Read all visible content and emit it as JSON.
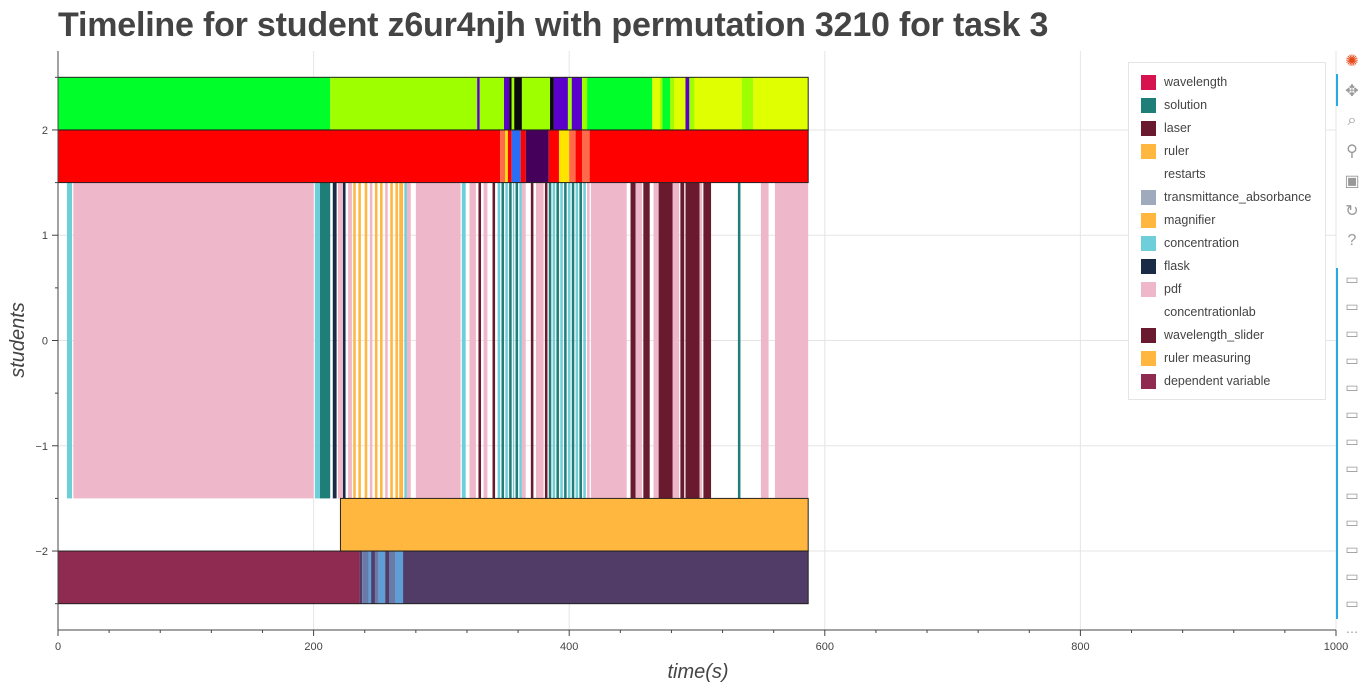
{
  "colors": {
    "wavelength": "#d6134f",
    "solution": "#1f7f78",
    "laser": "#6a1a2e",
    "ruler": "#ffb740",
    "restarts": "#ffffff",
    "transmittance_absorbance": "#9fabbd",
    "magnifier": "#ffb740",
    "concentration": "#6ecfdb",
    "flask": "#1a2b45",
    "pdf": "#efb8ca",
    "concentrationlab": "#ffffff",
    "wavelength_slider": "#6a1a2e",
    "ruler measuring": "#ffb740",
    "dependent variable": "#8f2a50",
    "top_green": "#00ff2a",
    "top_lime": "#9dff00",
    "top_yellow": "#e0ff00",
    "top_purple": "#5a00c8",
    "top_black": "#0a0a0a",
    "red": "#ff0000",
    "red_blue": "#2a6ef5",
    "red_dark": "#44005a",
    "red_yellow": "#ffe400",
    "red_salmon": "#ff6a4a",
    "bottom_maroon": "#8f2a50",
    "bottom_slate": "#503c66",
    "bottom_blue": "#5d9ed6",
    "bottom_grayblue": "#6a7aa8"
  },
  "chart_data": {
    "type": "bar",
    "title": "Timeline for student z6ur4njh with permutation 3210 for task 3",
    "xlabel": "time(s)",
    "ylabel": "students",
    "xlim": [
      0,
      1000
    ],
    "ylim": [
      -2.75,
      2.75
    ],
    "x_ticks": [
      0,
      200,
      400,
      600,
      800,
      1000
    ],
    "y_ticks": [
      -2,
      -1,
      0,
      1,
      2
    ],
    "x_tick_labels": [
      "0",
      "200",
      "400",
      "600",
      "800",
      "1000"
    ],
    "y_tick_labels": [
      "−2",
      "−1",
      "0",
      "1",
      "2"
    ],
    "grid": true,
    "legend_position": "top-right",
    "legend": [
      {
        "label": "wavelength",
        "color_key": "wavelength"
      },
      {
        "label": "solution",
        "color_key": "solution"
      },
      {
        "label": "laser",
        "color_key": "laser"
      },
      {
        "label": "ruler",
        "color_key": "ruler"
      },
      {
        "label": "restarts",
        "color_key": "restarts"
      },
      {
        "label": "transmittance_absorbance",
        "color_key": "transmittance_absorbance"
      },
      {
        "label": "magnifier",
        "color_key": "magnifier"
      },
      {
        "label": "concentration",
        "color_key": "concentration"
      },
      {
        "label": "flask",
        "color_key": "flask"
      },
      {
        "label": "pdf",
        "color_key": "pdf"
      },
      {
        "label": "concentrationlab",
        "color_key": "concentrationlab"
      },
      {
        "label": "wavelength_slider",
        "color_key": "wavelength_slider"
      },
      {
        "label": "ruler measuring",
        "color_key": "ruler measuring"
      },
      {
        "label": "dependent variable",
        "color_key": "dependent variable"
      }
    ],
    "rows": [
      {
        "name": "top",
        "y_range": [
          2.0,
          2.5
        ],
        "segments": [
          {
            "start": 0,
            "end": 213,
            "color_key": "top_green"
          },
          {
            "start": 213,
            "end": 328,
            "color_key": "top_lime"
          },
          {
            "start": 328,
            "end": 330,
            "color_key": "top_purple"
          },
          {
            "start": 330,
            "end": 349,
            "color_key": "top_lime"
          },
          {
            "start": 349,
            "end": 353,
            "color_key": "top_purple"
          },
          {
            "start": 353,
            "end": 355,
            "color_key": "top_black"
          },
          {
            "start": 355,
            "end": 357,
            "color_key": "top_lime"
          },
          {
            "start": 357,
            "end": 363,
            "color_key": "top_black"
          },
          {
            "start": 363,
            "end": 385,
            "color_key": "top_lime"
          },
          {
            "start": 385,
            "end": 388,
            "color_key": "top_black"
          },
          {
            "start": 388,
            "end": 399,
            "color_key": "top_purple"
          },
          {
            "start": 399,
            "end": 402,
            "color_key": "top_lime"
          },
          {
            "start": 402,
            "end": 410,
            "color_key": "top_purple"
          },
          {
            "start": 410,
            "end": 414,
            "color_key": "top_lime"
          },
          {
            "start": 414,
            "end": 465,
            "color_key": "top_green"
          },
          {
            "start": 465,
            "end": 471,
            "color_key": "top_yellow"
          },
          {
            "start": 471,
            "end": 473,
            "color_key": "top_lime"
          },
          {
            "start": 473,
            "end": 479,
            "color_key": "top_green"
          },
          {
            "start": 479,
            "end": 482,
            "color_key": "top_lime"
          },
          {
            "start": 482,
            "end": 491,
            "color_key": "top_yellow"
          },
          {
            "start": 491,
            "end": 494,
            "color_key": "top_purple"
          },
          {
            "start": 494,
            "end": 498,
            "color_key": "top_lime"
          },
          {
            "start": 498,
            "end": 535,
            "color_key": "top_yellow"
          },
          {
            "start": 535,
            "end": 544,
            "color_key": "top_lime"
          },
          {
            "start": 544,
            "end": 587,
            "color_key": "top_yellow"
          }
        ]
      },
      {
        "name": "second",
        "y_range": [
          1.5,
          2.0
        ],
        "segments": [
          {
            "start": 0,
            "end": 346,
            "color_key": "red"
          },
          {
            "start": 346,
            "end": 350,
            "color_key": "red_salmon"
          },
          {
            "start": 350,
            "end": 352,
            "color_key": "red_yellow"
          },
          {
            "start": 352,
            "end": 355,
            "color_key": "red"
          },
          {
            "start": 355,
            "end": 362,
            "color_key": "red_blue"
          },
          {
            "start": 362,
            "end": 366,
            "color_key": "red"
          },
          {
            "start": 366,
            "end": 384,
            "color_key": "red_dark"
          },
          {
            "start": 384,
            "end": 392,
            "color_key": "red"
          },
          {
            "start": 392,
            "end": 400,
            "color_key": "red_yellow"
          },
          {
            "start": 400,
            "end": 405,
            "color_key": "red_salmon"
          },
          {
            "start": 405,
            "end": 410,
            "color_key": "red"
          },
          {
            "start": 410,
            "end": 416,
            "color_key": "red_salmon"
          },
          {
            "start": 416,
            "end": 587,
            "color_key": "red"
          }
        ]
      },
      {
        "name": "events",
        "y_range": [
          -1.5,
          1.5
        ],
        "segments": [
          {
            "start": 7,
            "end": 11,
            "color_key": "concentration"
          },
          {
            "start": 12,
            "end": 200,
            "color_key": "pdf"
          },
          {
            "start": 201,
            "end": 205,
            "color_key": "concentration"
          },
          {
            "start": 205,
            "end": 213,
            "color_key": "solution"
          },
          {
            "start": 215,
            "end": 218,
            "color_key": "flask"
          },
          {
            "start": 219,
            "end": 223,
            "color_key": "pdf"
          },
          {
            "start": 223,
            "end": 225,
            "color_key": "flask"
          },
          {
            "start": 227,
            "end": 230,
            "color_key": "pdf"
          },
          {
            "start": 231,
            "end": 233,
            "color_key": "ruler"
          },
          {
            "start": 235,
            "end": 237,
            "color_key": "ruler"
          },
          {
            "start": 240,
            "end": 242,
            "color_key": "ruler"
          },
          {
            "start": 244,
            "end": 246,
            "color_key": "pdf"
          },
          {
            "start": 248,
            "end": 250,
            "color_key": "ruler"
          },
          {
            "start": 252,
            "end": 254,
            "color_key": "ruler"
          },
          {
            "start": 256,
            "end": 258,
            "color_key": "pdf"
          },
          {
            "start": 260,
            "end": 262,
            "color_key": "ruler"
          },
          {
            "start": 264,
            "end": 266,
            "color_key": "ruler"
          },
          {
            "start": 267,
            "end": 270,
            "color_key": "ruler"
          },
          {
            "start": 271,
            "end": 273,
            "color_key": "concentration"
          },
          {
            "start": 273,
            "end": 276,
            "color_key": "pdf"
          },
          {
            "start": 280,
            "end": 315,
            "color_key": "pdf"
          },
          {
            "start": 316,
            "end": 319,
            "color_key": "concentration"
          },
          {
            "start": 322,
            "end": 327,
            "color_key": "pdf"
          },
          {
            "start": 329,
            "end": 331,
            "color_key": "laser"
          },
          {
            "start": 333,
            "end": 336,
            "color_key": "pdf"
          },
          {
            "start": 340,
            "end": 342,
            "color_key": "laser"
          },
          {
            "start": 344,
            "end": 346,
            "color_key": "concentration"
          },
          {
            "start": 347,
            "end": 349,
            "color_key": "solution"
          },
          {
            "start": 350,
            "end": 352,
            "color_key": "concentration"
          },
          {
            "start": 353,
            "end": 355,
            "color_key": "solution"
          },
          {
            "start": 356,
            "end": 357,
            "color_key": "concentration"
          },
          {
            "start": 358,
            "end": 360,
            "color_key": "solution"
          },
          {
            "start": 361,
            "end": 363,
            "color_key": "concentration"
          },
          {
            "start": 363,
            "end": 366,
            "color_key": "pdf"
          },
          {
            "start": 370,
            "end": 372,
            "color_key": "laser"
          },
          {
            "start": 374,
            "end": 380,
            "color_key": "pdf"
          },
          {
            "start": 381,
            "end": 383,
            "color_key": "laser"
          },
          {
            "start": 384,
            "end": 386,
            "color_key": "solution"
          },
          {
            "start": 387,
            "end": 389,
            "color_key": "concentration"
          },
          {
            "start": 390,
            "end": 392,
            "color_key": "solution"
          },
          {
            "start": 393,
            "end": 395,
            "color_key": "concentration"
          },
          {
            "start": 396,
            "end": 398,
            "color_key": "solution"
          },
          {
            "start": 399,
            "end": 401,
            "color_key": "concentration"
          },
          {
            "start": 402,
            "end": 404,
            "color_key": "solution"
          },
          {
            "start": 405,
            "end": 407,
            "color_key": "concentration"
          },
          {
            "start": 408,
            "end": 410,
            "color_key": "solution"
          },
          {
            "start": 411,
            "end": 413,
            "color_key": "concentration"
          },
          {
            "start": 414,
            "end": 416,
            "color_key": "pdf"
          },
          {
            "start": 417,
            "end": 445,
            "color_key": "pdf"
          },
          {
            "start": 448,
            "end": 452,
            "color_key": "laser"
          },
          {
            "start": 452,
            "end": 457,
            "color_key": "pdf"
          },
          {
            "start": 458,
            "end": 463,
            "color_key": "laser"
          },
          {
            "start": 466,
            "end": 470,
            "color_key": "pdf"
          },
          {
            "start": 470,
            "end": 481,
            "color_key": "laser"
          },
          {
            "start": 481,
            "end": 486,
            "color_key": "pdf"
          },
          {
            "start": 487,
            "end": 490,
            "color_key": "laser"
          },
          {
            "start": 491,
            "end": 502,
            "color_key": "laser"
          },
          {
            "start": 502,
            "end": 504,
            "color_key": "pdf"
          },
          {
            "start": 505,
            "end": 511,
            "color_key": "laser"
          },
          {
            "start": 532,
            "end": 534,
            "color_key": "solution"
          },
          {
            "start": 550,
            "end": 556,
            "color_key": "pdf"
          },
          {
            "start": 561,
            "end": 587,
            "color_key": "pdf"
          }
        ]
      },
      {
        "name": "ruler-measuring-row",
        "y_range": [
          -2.0,
          -1.5
        ],
        "segments": [
          {
            "start": 221,
            "end": 587,
            "color_key": "ruler measuring"
          }
        ]
      },
      {
        "name": "bottom",
        "y_range": [
          -2.5,
          -2.0
        ],
        "segments": [
          {
            "start": 0,
            "end": 236,
            "color_key": "bottom_maroon"
          },
          {
            "start": 236,
            "end": 238,
            "color_key": "bottom_slate"
          },
          {
            "start": 238,
            "end": 243,
            "color_key": "bottom_grayblue"
          },
          {
            "start": 243,
            "end": 245,
            "color_key": "bottom_blue"
          },
          {
            "start": 245,
            "end": 248,
            "color_key": "bottom_slate"
          },
          {
            "start": 248,
            "end": 251,
            "color_key": "bottom_grayblue"
          },
          {
            "start": 251,
            "end": 256,
            "color_key": "bottom_blue"
          },
          {
            "start": 256,
            "end": 259,
            "color_key": "bottom_slate"
          },
          {
            "start": 259,
            "end": 264,
            "color_key": "bottom_grayblue"
          },
          {
            "start": 264,
            "end": 270,
            "color_key": "bottom_blue"
          },
          {
            "start": 270,
            "end": 587,
            "color_key": "bottom_slate"
          }
        ]
      }
    ]
  },
  "toolbar": {
    "tools": [
      {
        "name": "bokeh-logo-icon",
        "glyph": "✺",
        "color": "#e64a19"
      },
      {
        "name": "pan-tool-icon",
        "glyph": "✥"
      },
      {
        "name": "box-zoom-tool-icon",
        "glyph": "⌕"
      },
      {
        "name": "wheel-zoom-tool-icon",
        "glyph": "⚲"
      },
      {
        "name": "save-tool-icon",
        "glyph": "▣"
      },
      {
        "name": "reset-tool-icon",
        "glyph": "↻"
      },
      {
        "name": "help-tool-icon",
        "glyph": "?"
      }
    ],
    "hover_count": 13,
    "hover_glyph": "▭",
    "more_glyph": "⋯"
  }
}
